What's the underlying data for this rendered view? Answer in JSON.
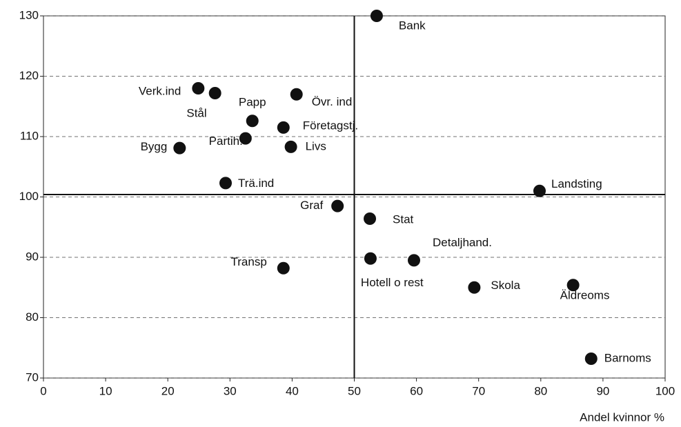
{
  "chart_data": {
    "type": "scatter",
    "x_label": "Andel kvinnor %",
    "labels": [
      "Bank",
      "Verk.ind",
      "Stål",
      "Övr. ind",
      "Papp",
      "Företagstj.",
      "Partih.",
      "Bygg",
      "Livs",
      "Trä.ind",
      "Landsting",
      "Graf",
      "Stat",
      "Detaljhand.",
      "Hotell o rest",
      "Transp",
      "Skola",
      "Äldreoms",
      "Barnoms"
    ],
    "x": [
      53.6,
      24.9,
      27.6,
      40.7,
      33.6,
      38.6,
      32.5,
      21.9,
      39.8,
      29.3,
      79.8,
      47.3,
      52.5,
      59.6,
      52.6,
      38.6,
      69.3,
      85.2,
      88.1
    ],
    "values": [
      130.0,
      118.0,
      117.2,
      117.0,
      112.6,
      111.5,
      109.7,
      108.1,
      108.3,
      102.3,
      101.0,
      98.5,
      96.4,
      89.5,
      89.8,
      88.2,
      85.0,
      85.4,
      73.2
    ],
    "color": "#111111",
    "xlim": [
      0,
      100
    ],
    "xticks": [
      0,
      10,
      20,
      30,
      40,
      50,
      60,
      70,
      80,
      90,
      100
    ],
    "ylim": [
      70,
      130
    ],
    "yticks": [
      70,
      80,
      90,
      100,
      110,
      120,
      130
    ],
    "grid": true,
    "reference_lines": {
      "x": 50,
      "y": 100.4
    }
  }
}
